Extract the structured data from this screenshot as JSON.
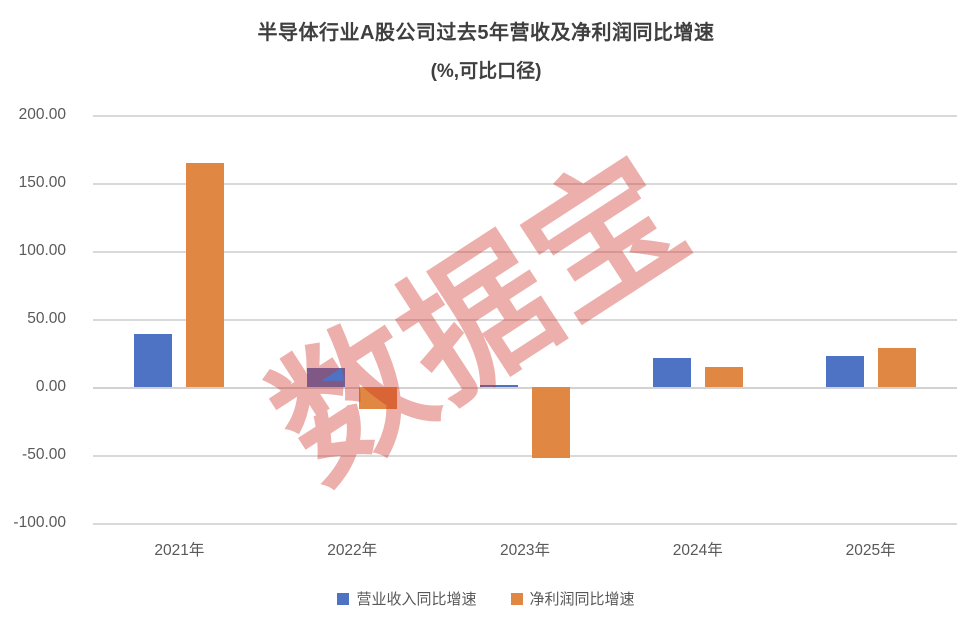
{
  "title": {
    "line1": "半导体行业A股公司过去5年营收及净利润同比增速",
    "line2": "(%,可比口径)"
  },
  "watermark": {
    "text": "数据宝",
    "color": "rgba(205,45,35,0.38)"
  },
  "colors": {
    "revenue": "#4f73c4",
    "profit": "#e08843",
    "gridline": "#d9d9d9",
    "axis_text": "#595959",
    "title_text": "#3f3f3f"
  },
  "chart_data": {
    "type": "bar",
    "title": "半导体行业A股公司过去5年营收及净利润同比增速",
    "subtitle": "(%,可比口径)",
    "categories": [
      "2021年",
      "2022年",
      "2023年",
      "2024年",
      "2025年"
    ],
    "series": [
      {
        "name": "营业收入同比增速",
        "color_key": "revenue",
        "values": [
          39,
          14,
          1.3,
          21,
          23
        ]
      },
      {
        "name": "净利润同比增速",
        "color_key": "profit",
        "values": [
          165,
          -16,
          -52,
          15,
          29
        ]
      }
    ],
    "ylim": [
      -100,
      200
    ],
    "ytick_step": 50,
    "ytick_labels": [
      "200.00",
      "150.00",
      "100.00",
      "50.00",
      "0.00",
      "-50.00",
      "-100.00"
    ],
    "grid": true,
    "legend_position": "bottom"
  },
  "legend": {
    "items": [
      {
        "label": "营业收入同比增速",
        "color": "#4f73c4"
      },
      {
        "label": "净利润同比增速",
        "color": "#e08843"
      }
    ]
  }
}
